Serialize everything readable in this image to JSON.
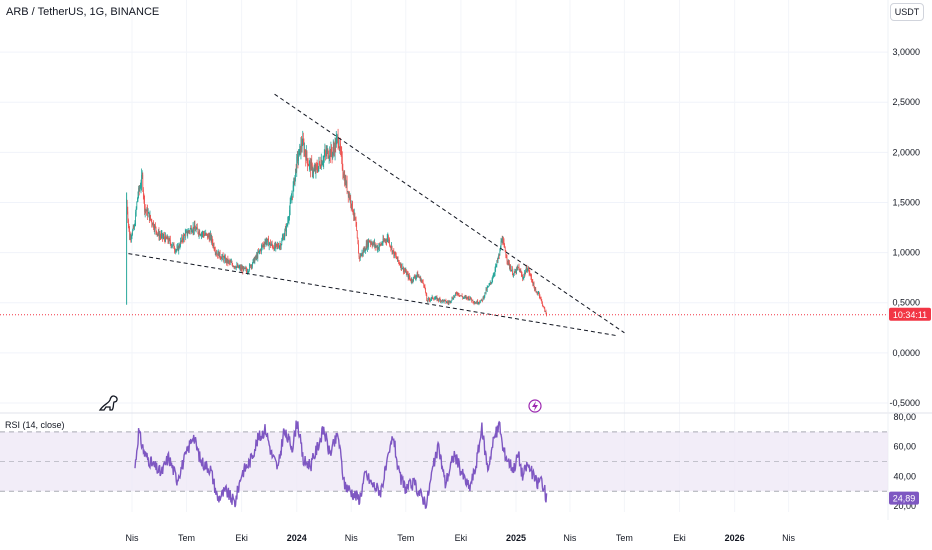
{
  "header": {
    "symbol_line": "ARB / TetherUS, 1G, BINANCE"
  },
  "currency_button": "USDT",
  "rsi_title": "RSI (14, close)",
  "colors": {
    "up": "#26a69a",
    "down": "#ef5350",
    "rsi_line": "#7e57c2",
    "rsi_band": "#ede7f6",
    "price_line": "#f23645",
    "axis_text": "#131722"
  },
  "icons": {
    "logo": "dino-icon",
    "flash": "lightning-icon"
  },
  "chart_data": [
    {
      "type": "candlestick",
      "title": "ARB / TetherUS, 1G, BINANCE",
      "y_ticks": [
        "3,0000",
        "2,5000",
        "2,0000",
        "1,5000",
        "1,0000",
        "0,5000",
        "0,0000",
        "-0,5000"
      ],
      "y_tick_values": [
        3.0,
        2.5,
        2.0,
        1.5,
        1.0,
        0.5,
        0.0,
        -0.5
      ],
      "ylim": [
        -0.55,
        3.3
      ],
      "x_ticks": [
        "Nis",
        "Tem",
        "Eki",
        "2024",
        "Nis",
        "Tem",
        "Eki",
        "2025",
        "Nis",
        "Tem",
        "Eki",
        "2026",
        "Nis"
      ],
      "x_tick_dates": [
        "2023-04-01",
        "2023-07-01",
        "2023-10-01",
        "2024-01-01",
        "2024-04-01",
        "2024-07-01",
        "2024-10-01",
        "2025-01-01",
        "2025-04-01",
        "2025-07-01",
        "2025-10-01",
        "2026-01-01",
        "2026-04-01"
      ],
      "price_path": [
        [
          "2023-03-23",
          1.5
        ],
        [
          "2023-03-28",
          1.15
        ],
        [
          "2023-04-05",
          1.25
        ],
        [
          "2023-04-10",
          1.55
        ],
        [
          "2023-04-18",
          1.75
        ],
        [
          "2023-04-22",
          1.45
        ],
        [
          "2023-05-05",
          1.3
        ],
        [
          "2023-05-15",
          1.18
        ],
        [
          "2023-06-01",
          1.12
        ],
        [
          "2023-06-15",
          1.02
        ],
        [
          "2023-06-25",
          1.15
        ],
        [
          "2023-07-10",
          1.25
        ],
        [
          "2023-07-25",
          1.2
        ],
        [
          "2023-08-10",
          1.15
        ],
        [
          "2023-08-20",
          1.0
        ],
        [
          "2023-09-05",
          0.92
        ],
        [
          "2023-09-25",
          0.85
        ],
        [
          "2023-10-10",
          0.82
        ],
        [
          "2023-10-25",
          0.95
        ],
        [
          "2023-11-10",
          1.12
        ],
        [
          "2023-11-25",
          1.05
        ],
        [
          "2023-12-05",
          1.08
        ],
        [
          "2023-12-15",
          1.25
        ],
        [
          "2023-12-25",
          1.6
        ],
        [
          "2024-01-01",
          1.9
        ],
        [
          "2024-01-10",
          2.1
        ],
        [
          "2024-01-20",
          1.9
        ],
        [
          "2024-01-30",
          1.8
        ],
        [
          "2024-02-10",
          1.9
        ],
        [
          "2024-02-20",
          2.0
        ],
        [
          "2024-03-01",
          2.0
        ],
        [
          "2024-03-10",
          2.15
        ],
        [
          "2024-03-20",
          1.75
        ],
        [
          "2024-04-01",
          1.5
        ],
        [
          "2024-04-08",
          1.3
        ],
        [
          "2024-04-14",
          0.95
        ],
        [
          "2024-04-20",
          1.0
        ],
        [
          "2024-05-01",
          1.12
        ],
        [
          "2024-05-15",
          1.05
        ],
        [
          "2024-06-01",
          1.15
        ],
        [
          "2024-06-10",
          1.0
        ],
        [
          "2024-06-20",
          0.9
        ],
        [
          "2024-07-01",
          0.8
        ],
        [
          "2024-07-10",
          0.72
        ],
        [
          "2024-07-20",
          0.78
        ],
        [
          "2024-08-01",
          0.68
        ],
        [
          "2024-08-05",
          0.52
        ],
        [
          "2024-08-15",
          0.55
        ],
        [
          "2024-09-01",
          0.52
        ],
        [
          "2024-09-10",
          0.5
        ],
        [
          "2024-09-25",
          0.6
        ],
        [
          "2024-10-05",
          0.55
        ],
        [
          "2024-10-15",
          0.55
        ],
        [
          "2024-10-25",
          0.5
        ],
        [
          "2024-11-05",
          0.52
        ],
        [
          "2024-11-12",
          0.62
        ],
        [
          "2024-11-20",
          0.7
        ],
        [
          "2024-11-28",
          0.85
        ],
        [
          "2024-12-05",
          1.0
        ],
        [
          "2024-12-08",
          1.15
        ],
        [
          "2024-12-12",
          1.05
        ],
        [
          "2024-12-20",
          0.88
        ],
        [
          "2024-12-28",
          0.78
        ],
        [
          "2025-01-05",
          0.85
        ],
        [
          "2025-01-12",
          0.75
        ],
        [
          "2025-01-20",
          0.85
        ],
        [
          "2025-01-28",
          0.72
        ],
        [
          "2025-02-03",
          0.6
        ],
        [
          "2025-02-08",
          0.6
        ],
        [
          "2025-02-12",
          0.52
        ],
        [
          "2025-02-18",
          0.42
        ],
        [
          "2025-02-21",
          0.38
        ]
      ],
      "current_price_label": "10:34:11",
      "trendlines": [
        {
          "style": "dashed",
          "from": [
            "2023-11-25",
            2.58
          ],
          "to": [
            "2025-07-01",
            0.2
          ]
        },
        {
          "style": "dashed",
          "from": [
            "2023-03-26",
            0.99
          ],
          "to": [
            "2025-06-20",
            0.17
          ]
        }
      ]
    },
    {
      "type": "line",
      "title": "RSI (14, close)",
      "y_ticks": [
        "80,00",
        "60,00",
        "40,00",
        "20,00"
      ],
      "y_tick_values": [
        80,
        60,
        40,
        20
      ],
      "ylim": [
        16,
        82
      ],
      "bands": [
        70,
        50,
        30
      ],
      "last_value_label": "24,89",
      "rsi_path": [
        [
          "2023-04-06",
          46
        ],
        [
          "2023-04-12",
          70
        ],
        [
          "2023-04-22",
          55
        ],
        [
          "2023-05-05",
          48
        ],
        [
          "2023-05-20",
          42
        ],
        [
          "2023-06-01",
          53
        ],
        [
          "2023-06-15",
          38
        ],
        [
          "2023-07-01",
          55
        ],
        [
          "2023-07-12",
          68
        ],
        [
          "2023-07-25",
          50
        ],
        [
          "2023-08-10",
          45
        ],
        [
          "2023-08-22",
          25
        ],
        [
          "2023-09-05",
          30
        ],
        [
          "2023-09-20",
          22
        ],
        [
          "2023-10-01",
          42
        ],
        [
          "2023-10-15",
          50
        ],
        [
          "2023-10-28",
          65
        ],
        [
          "2023-11-10",
          72
        ],
        [
          "2023-11-20",
          55
        ],
        [
          "2023-12-01",
          45
        ],
        [
          "2023-12-10",
          70
        ],
        [
          "2023-12-25",
          60
        ],
        [
          "2024-01-02",
          78
        ],
        [
          "2024-01-12",
          50
        ],
        [
          "2024-01-25",
          48
        ],
        [
          "2024-02-05",
          60
        ],
        [
          "2024-02-15",
          72
        ],
        [
          "2024-02-25",
          55
        ],
        [
          "2024-03-10",
          68
        ],
        [
          "2024-03-20",
          35
        ],
        [
          "2024-04-05",
          28
        ],
        [
          "2024-04-15",
          25
        ],
        [
          "2024-04-25",
          42
        ],
        [
          "2024-05-05",
          35
        ],
        [
          "2024-05-20",
          30
        ],
        [
          "2024-06-01",
          50
        ],
        [
          "2024-06-10",
          68
        ],
        [
          "2024-06-20",
          40
        ],
        [
          "2024-07-01",
          32
        ],
        [
          "2024-07-15",
          35
        ],
        [
          "2024-07-25",
          28
        ],
        [
          "2024-08-05",
          22
        ],
        [
          "2024-08-15",
          45
        ],
        [
          "2024-08-25",
          60
        ],
        [
          "2024-09-05",
          35
        ],
        [
          "2024-09-20",
          55
        ],
        [
          "2024-10-05",
          40
        ],
        [
          "2024-10-15",
          32
        ],
        [
          "2024-10-25",
          45
        ],
        [
          "2024-11-05",
          72
        ],
        [
          "2024-11-15",
          45
        ],
        [
          "2024-11-25",
          65
        ],
        [
          "2024-12-05",
          75
        ],
        [
          "2024-12-10",
          58
        ],
        [
          "2024-12-20",
          50
        ],
        [
          "2024-12-28",
          45
        ],
        [
          "2025-01-05",
          55
        ],
        [
          "2025-01-12",
          40
        ],
        [
          "2025-01-20",
          48
        ],
        [
          "2025-01-28",
          42
        ],
        [
          "2025-02-05",
          35
        ],
        [
          "2025-02-12",
          38
        ],
        [
          "2025-02-18",
          30
        ],
        [
          "2025-02-21",
          25
        ]
      ]
    }
  ]
}
